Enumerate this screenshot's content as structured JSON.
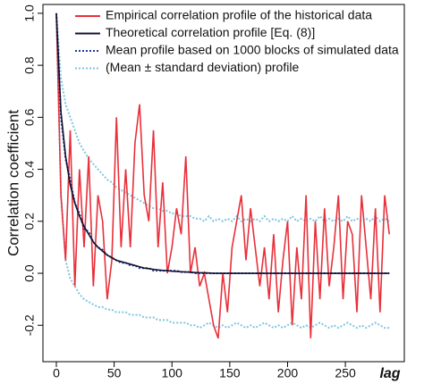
{
  "chart_data": {
    "type": "line",
    "ylabel": "Correlation coefficient",
    "xlabel": "lag",
    "xlim": [
      -11.6,
      301
    ],
    "ylim": [
      -0.34,
      1.034
    ],
    "xticks": [
      0,
      50,
      100,
      150,
      200,
      250
    ],
    "yticks": [
      -0.2,
      {
        "value": 0,
        "label": "0.0"
      },
      0.2,
      0.4,
      0.6,
      0.8,
      {
        "value": 1,
        "label": "1.0"
      }
    ],
    "grid": false,
    "legend": "top",
    "x": [
      0,
      4,
      8,
      12,
      16,
      20,
      24,
      28,
      32,
      36,
      40,
      44,
      48,
      52,
      56,
      60,
      64,
      68,
      72,
      76,
      80,
      84,
      88,
      92,
      96,
      100,
      104,
      108,
      112,
      116,
      120,
      124,
      128,
      132,
      136,
      140,
      144,
      148,
      152,
      156,
      160,
      164,
      168,
      172,
      176,
      180,
      184,
      188,
      192,
      196,
      200,
      204,
      208,
      212,
      216,
      220,
      224,
      228,
      232,
      236,
      240,
      244,
      248,
      252,
      256,
      260,
      264,
      268,
      272,
      276,
      280,
      284,
      288
    ],
    "series": [
      {
        "name": "Empirical correlation profile of the historical data",
        "color": "#e8303a",
        "style": "solid",
        "values": [
          1.0,
          0.3,
          0.05,
          0.55,
          -0.05,
          0.4,
          0.1,
          0.45,
          -0.05,
          0.3,
          0.2,
          -0.1,
          0.05,
          0.6,
          0.1,
          0.4,
          0.1,
          0.5,
          0.65,
          0.3,
          0.2,
          0.55,
          0.1,
          0.35,
          0.0,
          0.1,
          0.25,
          0.15,
          0.45,
          0.0,
          0.1,
          -0.05,
          0.0,
          -0.1,
          -0.2,
          -0.25,
          0.0,
          -0.15,
          0.1,
          0.2,
          0.3,
          0.05,
          0.25,
          0.1,
          -0.05,
          0.1,
          -0.1,
          0.15,
          -0.15,
          0.05,
          0.2,
          -0.2,
          0.1,
          -0.1,
          0.3,
          -0.25,
          0.2,
          -0.1,
          0.25,
          -0.05,
          0.1,
          0.3,
          -0.1,
          0.2,
          0.15,
          -0.15,
          0.3,
          0.1,
          -0.1,
          0.25,
          -0.15,
          0.3,
          0.15
        ]
      },
      {
        "name": "Theoretical correlation profile [Eq. (8)]",
        "color": "#111133",
        "style": "solid",
        "values": [
          1.0,
          0.62,
          0.45,
          0.34,
          0.27,
          0.22,
          0.18,
          0.15,
          0.12,
          0.1,
          0.085,
          0.07,
          0.06,
          0.05,
          0.045,
          0.04,
          0.035,
          0.03,
          0.025,
          0.02,
          0.018,
          0.015,
          0.013,
          0.011,
          0.01,
          0.008,
          0.007,
          0.006,
          0.005,
          0.004,
          0.003,
          0.002,
          0.002,
          0.001,
          0,
          0,
          0,
          0,
          0,
          0,
          0,
          0,
          0,
          0,
          0,
          0,
          0,
          0,
          0,
          0,
          0,
          0,
          0,
          0,
          0,
          0,
          0,
          0,
          0,
          0,
          0,
          0,
          0,
          0,
          0,
          0,
          0,
          0,
          0,
          0,
          0,
          0,
          0
        ]
      },
      {
        "name": "Mean profile based on 1000 blocks of simulated data",
        "color": "#1f3a93",
        "style": "dotted",
        "values": [
          1.0,
          0.6,
          0.44,
          0.36,
          0.27,
          0.23,
          0.17,
          0.16,
          0.12,
          0.1,
          0.09,
          0.07,
          0.06,
          0.05,
          0.04,
          0.04,
          0.03,
          0.03,
          0.02,
          0.02,
          0.02,
          0.01,
          0.01,
          0.01,
          0.01,
          0.01,
          0.01,
          0.005,
          0.005,
          0.005,
          0,
          0,
          0,
          0,
          0,
          0,
          0,
          0,
          0,
          0,
          0,
          0,
          0,
          0,
          0,
          0,
          0,
          0,
          0,
          0,
          0,
          0,
          0,
          0,
          0,
          0,
          0,
          0,
          0,
          0,
          0,
          0,
          0,
          0,
          0,
          0,
          0,
          0,
          0,
          0,
          0,
          0,
          0
        ]
      },
      {
        "name": "(Mean ± standard deviation) profile",
        "color": "#7fc6e0",
        "style": "dotted",
        "values": [
          1.0,
          0.75,
          0.65,
          0.6,
          0.55,
          0.5,
          0.47,
          0.44,
          0.42,
          0.4,
          0.38,
          0.36,
          0.35,
          0.33,
          0.32,
          0.31,
          0.3,
          0.29,
          0.28,
          0.27,
          0.26,
          0.25,
          0.25,
          0.24,
          0.24,
          0.23,
          0.23,
          0.22,
          0.22,
          0.22,
          0.21,
          0.21,
          0.2,
          0.22,
          0.2,
          0.21,
          0.2,
          0.21,
          0.2,
          0.22,
          0.2,
          0.21,
          0.2,
          0.21,
          0.2,
          0.22,
          0.2,
          0.21,
          0.2,
          0.21,
          0.2,
          0.22,
          0.2,
          0.21,
          0.2,
          0.21,
          0.2,
          0.22,
          0.2,
          0.21,
          0.2,
          0.21,
          0.2,
          0.22,
          0.2,
          0.21,
          0.2,
          0.21,
          0.2,
          0.22,
          0.2,
          0.21,
          0.2
        ],
        "lower_values": [
          1.0,
          0.3,
          0.05,
          -0.02,
          -0.05,
          -0.08,
          -0.1,
          -0.11,
          -0.12,
          -0.13,
          -0.13,
          -0.14,
          -0.14,
          -0.15,
          -0.15,
          -0.15,
          -0.16,
          -0.16,
          -0.16,
          -0.17,
          -0.17,
          -0.17,
          -0.18,
          -0.18,
          -0.18,
          -0.19,
          -0.19,
          -0.19,
          -0.19,
          -0.2,
          -0.2,
          -0.21,
          -0.2,
          -0.19,
          -0.2,
          -0.21,
          -0.2,
          -0.21,
          -0.2,
          -0.19,
          -0.2,
          -0.21,
          -0.2,
          -0.21,
          -0.2,
          -0.19,
          -0.2,
          -0.21,
          -0.2,
          -0.21,
          -0.2,
          -0.19,
          -0.2,
          -0.21,
          -0.2,
          -0.21,
          -0.2,
          -0.19,
          -0.2,
          -0.21,
          -0.2,
          -0.21,
          -0.2,
          -0.19,
          -0.2,
          -0.21,
          -0.2,
          -0.21,
          -0.2,
          -0.19,
          -0.2,
          -0.21,
          -0.21
        ]
      }
    ]
  }
}
